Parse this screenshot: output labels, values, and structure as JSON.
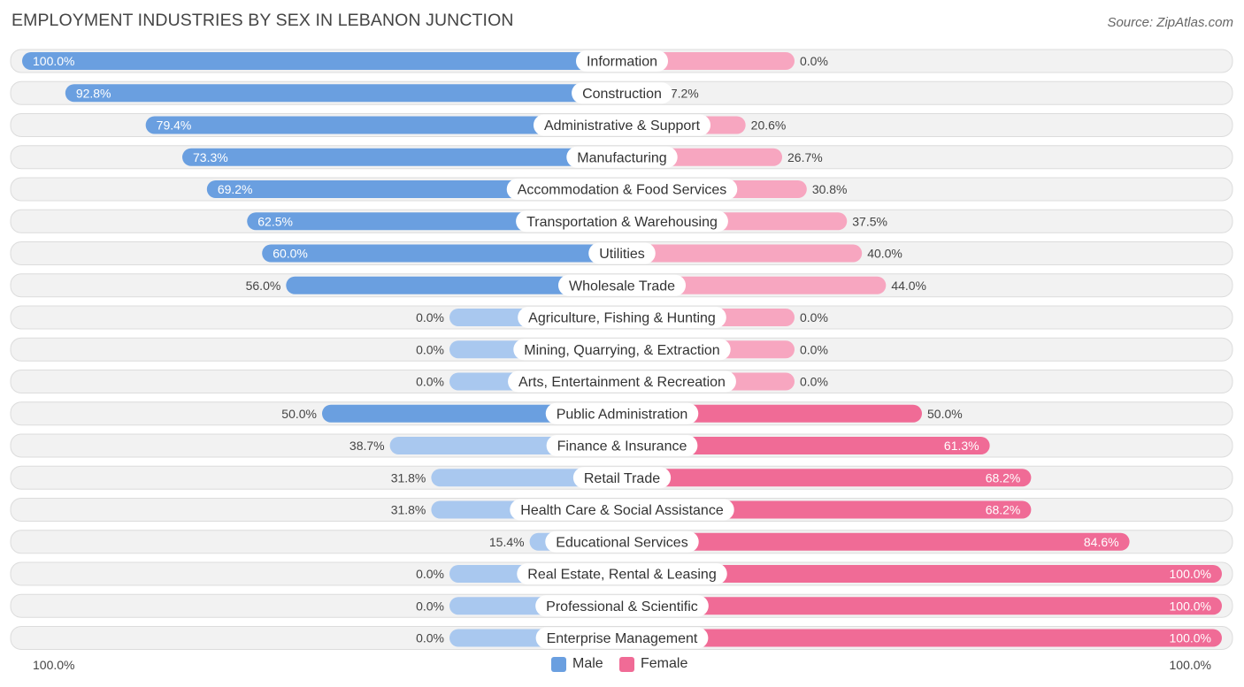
{
  "header": {
    "title": "EMPLOYMENT INDUSTRIES BY SEX IN LEBANON JUNCTION",
    "source": "Source: ZipAtlas.com"
  },
  "colors": {
    "male_strong": "#6a9fe0",
    "male_light": "#a9c8ef",
    "female_strong": "#f06b96",
    "female_light": "#f7a6c0",
    "row_bg": "#f2f2f2"
  },
  "chart_data": {
    "type": "bar",
    "orientation": "horizontal-diverging",
    "title": "EMPLOYMENT INDUSTRIES BY SEX IN LEBANON JUNCTION",
    "categories": [
      "Information",
      "Construction",
      "Administrative & Support",
      "Manufacturing",
      "Accommodation & Food Services",
      "Transportation & Warehousing",
      "Utilities",
      "Wholesale Trade",
      "Agriculture, Fishing & Hunting",
      "Mining, Quarrying, & Extraction",
      "Arts, Entertainment & Recreation",
      "Public Administration",
      "Finance & Insurance",
      "Retail Trade",
      "Health Care & Social Assistance",
      "Educational Services",
      "Real Estate, Rental & Leasing",
      "Professional & Scientific",
      "Enterprise Management"
    ],
    "series": [
      {
        "name": "Male",
        "values": [
          100.0,
          92.8,
          79.4,
          73.3,
          69.2,
          62.5,
          60.0,
          56.0,
          0.0,
          0.0,
          0.0,
          50.0,
          38.7,
          31.8,
          31.8,
          15.4,
          0.0,
          0.0,
          0.0
        ],
        "labels": [
          "100.0%",
          "92.8%",
          "79.4%",
          "73.3%",
          "69.2%",
          "62.5%",
          "60.0%",
          "56.0%",
          "0.0%",
          "0.0%",
          "0.0%",
          "50.0%",
          "38.7%",
          "31.8%",
          "31.8%",
          "15.4%",
          "0.0%",
          "0.0%",
          "0.0%"
        ]
      },
      {
        "name": "Female",
        "values": [
          0.0,
          7.2,
          20.6,
          26.7,
          30.8,
          37.5,
          40.0,
          44.0,
          0.0,
          0.0,
          0.0,
          50.0,
          61.3,
          68.2,
          68.2,
          84.6,
          100.0,
          100.0,
          100.0
        ],
        "labels": [
          "0.0%",
          "7.2%",
          "20.6%",
          "26.7%",
          "30.8%",
          "37.5%",
          "40.0%",
          "44.0%",
          "0.0%",
          "0.0%",
          "0.0%",
          "50.0%",
          "61.3%",
          "68.2%",
          "68.2%",
          "84.6%",
          "100.0%",
          "100.0%",
          "100.0%"
        ]
      }
    ],
    "xlim": [
      -100,
      100
    ],
    "axis_labels": {
      "left": "100.0%",
      "right": "100.0%"
    },
    "legend": {
      "placement": "bottom-center",
      "items": [
        "Male",
        "Female"
      ]
    }
  }
}
